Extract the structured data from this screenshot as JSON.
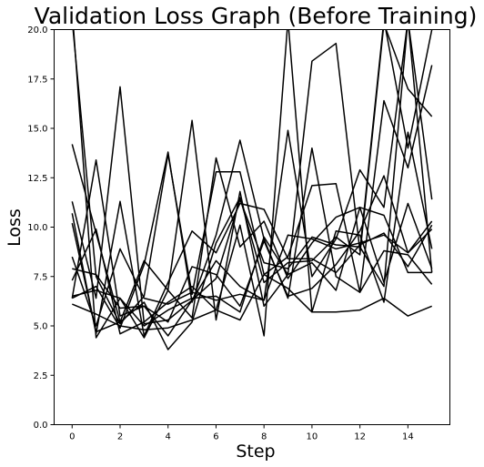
{
  "chart_data": {
    "type": "line",
    "title": "Validation Loss Graph (Before Training)",
    "xlabel": "Step",
    "ylabel": "Loss",
    "xlim": [
      -0.75,
      15.75
    ],
    "ylim": [
      0,
      20
    ],
    "xticks": [
      0,
      2,
      4,
      6,
      8,
      10,
      12,
      14
    ],
    "xtick_labels": [
      "0",
      "2",
      "4",
      "6",
      "8",
      "10",
      "12",
      "14"
    ],
    "yticks": [
      0,
      2.5,
      5,
      7.5,
      10,
      12.5,
      15,
      17.5,
      20
    ],
    "ytick_labels": [
      "0.0",
      "2.5",
      "5.0",
      "7.5",
      "10.0",
      "12.5",
      "15.0",
      "17.5",
      "20.0"
    ],
    "grid": false,
    "line_color": "#000000",
    "x": [
      0,
      1,
      2,
      3,
      4,
      5,
      6,
      7,
      8,
      9,
      10,
      11,
      12,
      13,
      14,
      15
    ],
    "series": [
      {
        "values": [
          14.2,
          9.7,
          5.2,
          8.3,
          6.8,
          5.4,
          13.5,
          9.0,
          10.3,
          7.4,
          9.2,
          10.5,
          11.0,
          7.2,
          11.2,
          7.9
        ]
      },
      {
        "values": [
          20.5,
          7.5,
          5.1,
          6.5,
          13.7,
          6.6,
          12.8,
          12.8,
          7.6,
          8.5,
          12.1,
          12.2,
          6.7,
          16.4,
          13.0,
          18.2
        ]
      },
      {
        "values": [
          21.0,
          4.4,
          6.4,
          4.4,
          6.8,
          15.4,
          5.3,
          11.8,
          6.0,
          7.6,
          18.4,
          19.3,
          8.8,
          20.5,
          14.0,
          20.0
        ]
      },
      {
        "values": [
          10.2,
          4.7,
          5.2,
          6.2,
          3.8,
          5.2,
          9.2,
          11.5,
          7.2,
          8.2,
          8.3,
          9.5,
          8.6,
          20.3,
          17.0,
          15.6
        ]
      },
      {
        "values": [
          11.3,
          6.4,
          17.1,
          5.1,
          5.3,
          6.3,
          8.3,
          7.0,
          6.3,
          14.9,
          7.5,
          9.4,
          12.9,
          11.0,
          20.5,
          11.4
        ]
      },
      {
        "values": [
          6.4,
          13.4,
          5.5,
          6.0,
          5.2,
          8.0,
          7.6,
          6.0,
          9.3,
          6.5,
          6.9,
          8.1,
          9.8,
          12.6,
          8.7,
          10.3
        ]
      },
      {
        "values": [
          6.1,
          5.6,
          5.0,
          4.8,
          4.9,
          5.3,
          5.8,
          5.3,
          7.6,
          6.9,
          5.7,
          5.7,
          5.8,
          6.4,
          5.5,
          6.0
        ]
      },
      {
        "values": [
          8.5,
          5.0,
          8.9,
          6.4,
          6.1,
          6.7,
          6.3,
          6.6,
          6.3,
          9.6,
          9.4,
          8.9,
          9.2,
          9.6,
          8.7,
          9.9
        ]
      },
      {
        "values": [
          7.9,
          7.6,
          5.9,
          6.0,
          4.5,
          6.3,
          7.4,
          11.4,
          8.2,
          7.9,
          9.5,
          9.1,
          9.0,
          7.0,
          20.5,
          7.7
        ]
      },
      {
        "values": [
          10.7,
          4.6,
          11.3,
          4.5,
          7.2,
          9.8,
          8.7,
          11.2,
          10.9,
          8.4,
          8.4,
          7.7,
          9.1,
          9.7,
          8.0,
          10.1
        ]
      },
      {
        "values": [
          7.3,
          9.9,
          4.6,
          5.2,
          6.2,
          7.0,
          5.8,
          10.1,
          4.5,
          20.5,
          5.7,
          9.8,
          9.6,
          6.2,
          14.8,
          8.9
        ]
      },
      {
        "values": [
          6.4,
          7.0,
          4.9,
          8.1,
          13.8,
          6.2,
          9.6,
          14.4,
          9.4,
          6.4,
          14.0,
          7.5,
          6.7,
          8.8,
          8.6,
          7.1
        ]
      },
      {
        "values": [
          6.5,
          6.8,
          6.4,
          5.0,
          5.8,
          6.4,
          6.5,
          5.7,
          9.5,
          7.6,
          8.2,
          6.8,
          11.0,
          10.6,
          7.7,
          7.7
        ]
      }
    ]
  }
}
